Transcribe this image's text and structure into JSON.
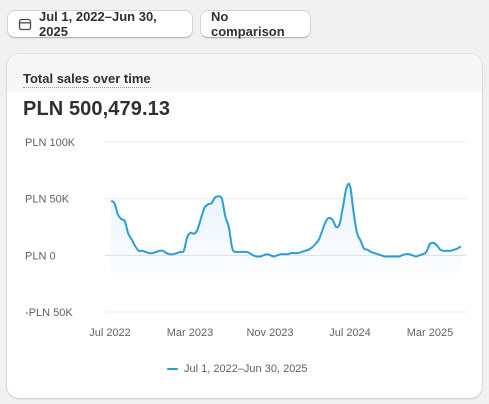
{
  "toolbar": {
    "date_range_label": "Jul 1, 2022–Jun 30, 2025",
    "date_icon": "calendar-icon",
    "comparison_label": "No comparison"
  },
  "card": {
    "title": "Total sales over time",
    "total": "PLN 500,479.13"
  },
  "colors": {
    "line": "#2c9ed6",
    "fill": "#e6f3fb",
    "grid": "#ebebeb",
    "zero": "#d6d6d6"
  },
  "chart_data": {
    "type": "line",
    "x_ticks": [
      "Jul 2022",
      "Mar 2023",
      "Nov 2023",
      "Jul 2024",
      "Mar 2025"
    ],
    "y_ticks": [
      "PLN 100K",
      "PLN 50K",
      "PLN 0",
      "-PLN 50K"
    ],
    "y_tick_values": [
      100000,
      50000,
      0,
      -50000
    ],
    "ylim": [
      -50000,
      100000
    ],
    "legend": [
      "Jul 1, 2022–Jun 30, 2025"
    ],
    "series": [
      {
        "name": "Jul 1, 2022–Jun 30, 2025",
        "values": [
          48000,
          46000,
          36000,
          32000,
          30000,
          19000,
          14000,
          8000,
          4000,
          4000,
          3000,
          2000,
          2000,
          3000,
          4000,
          4000,
          2000,
          1000,
          1000,
          2000,
          3000,
          4000,
          16000,
          20000,
          19000,
          23000,
          33000,
          42000,
          45000,
          46000,
          51000,
          52000,
          50000,
          34000,
          25000,
          6000,
          3000,
          3000,
          3000,
          3000,
          2000,
          0,
          -1000,
          -1000,
          0,
          1000,
          0,
          -1000,
          0,
          1000,
          1000,
          1000,
          2000,
          2000,
          2000,
          3000,
          4000,
          5000,
          7000,
          10000,
          14000,
          22000,
          30000,
          33000,
          31000,
          25000,
          28000,
          44000,
          60000,
          61000,
          38000,
          20000,
          13000,
          6000,
          5000,
          3000,
          2000,
          1000,
          0,
          -1000,
          -1000,
          -1000,
          -1000,
          -1000,
          0,
          1000,
          1000,
          0,
          -1000,
          0,
          1000,
          3000,
          10000,
          11000,
          9000,
          5000,
          4000,
          4000,
          4000,
          5000,
          6000,
          8000
        ]
      }
    ]
  }
}
